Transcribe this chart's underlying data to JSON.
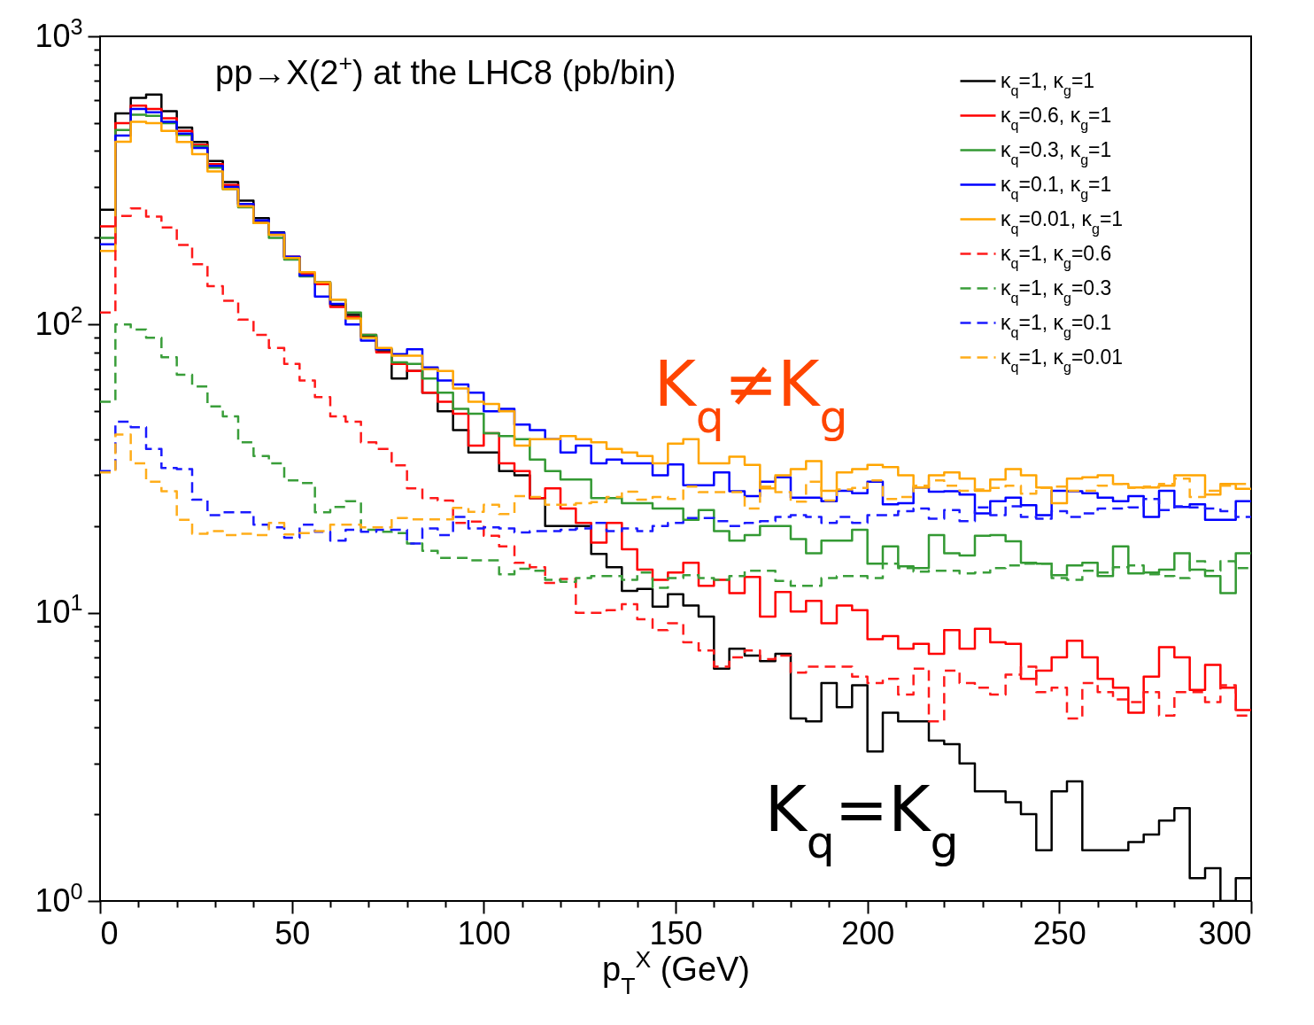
{
  "chart_data": {
    "type": "histogram",
    "title": "pp→X(2$^{+}$) at the LHC8 (pb/bin)",
    "xlabel": "p$_{T}$$^{X}$ (GeV)",
    "bins": [
      0,
      4,
      8,
      12,
      16,
      20,
      24,
      28,
      32,
      36,
      40,
      44,
      48,
      52,
      56,
      60,
      64,
      68,
      72,
      76,
      80,
      84,
      88,
      92,
      96,
      100,
      104,
      108,
      112,
      116,
      120,
      124,
      128,
      132,
      136,
      140,
      144,
      148,
      152,
      156,
      160,
      164,
      168,
      172,
      176,
      180,
      184,
      188,
      192,
      196,
      200,
      204,
      208,
      212,
      216,
      220,
      224,
      228,
      232,
      236,
      240,
      244,
      248,
      252,
      256,
      260,
      264,
      268,
      272,
      276,
      280,
      284,
      288,
      292,
      296,
      300
    ],
    "series": [
      {
        "name": "κ$_{q}$=1, κ$_{g}$=1",
        "color": "#000000",
        "line_style": "solid",
        "values": [
          250,
          540,
          612,
          628,
          550,
          482,
          430,
          369,
          312,
          269,
          234,
          209,
          171,
          149,
          140,
          117,
          108,
          91,
          81,
          65,
          69,
          58,
          50,
          43,
          36,
          36,
          31,
          30,
          25,
          20,
          20,
          20,
          16,
          14.4,
          11.9,
          12.1,
          10.5,
          11.6,
          10.6,
          9.7,
          6.4,
          7.5,
          7.1,
          6.8,
          7.2,
          4.3,
          4.2,
          5.7,
          4.7,
          5.6,
          3.3,
          4.5,
          4.2,
          4.2,
          3.6,
          3.5,
          3.0,
          2.4,
          2.4,
          2.2,
          2.0,
          1.5,
          2.4,
          2.6,
          1.5,
          1.5,
          1.5,
          1.6,
          1.7,
          1.9,
          2.1,
          1.2,
          1.3,
          null,
          1.2
        ]
      },
      {
        "name": "κ$_{q}$=0.6, κ$_{g}$=1",
        "color": "#ff0000",
        "line_style": "solid",
        "values": [
          219,
          500,
          575,
          560,
          520,
          470,
          420,
          360,
          305,
          262,
          228,
          205,
          172,
          150,
          138,
          115,
          106,
          92,
          80,
          73,
          69,
          58,
          54,
          49,
          38,
          42,
          33,
          31,
          25,
          27,
          23,
          20.5,
          17.5,
          20.5,
          16.6,
          14.1,
          13.0,
          13.8,
          14.9,
          12.4,
          13.0,
          11.7,
          13.3,
          9.7,
          11.8,
          10.1,
          11.0,
          9.2,
          10.6,
          10.2,
          8.1,
          8.3,
          7.5,
          7.8,
          7.2,
          8.7,
          7.5,
          8.8,
          7.9,
          7.8,
          5.9,
          6.3,
          7.0,
          8.0,
          7.0,
          5.9,
          5.5,
          4.5,
          6.0,
          7.6,
          7.0,
          5.4,
          6.6,
          5.5,
          4.6
        ]
      },
      {
        "name": "κ$_{q}$=0.3, κ$_{g}$=1",
        "color": "#339933",
        "line_style": "solid",
        "values": [
          200,
          473,
          535,
          530,
          500,
          455,
          415,
          350,
          295,
          255,
          225,
          200,
          168,
          147,
          140,
          122,
          110,
          92,
          82,
          74,
          73,
          65,
          58,
          51,
          49,
          42,
          41,
          40,
          34,
          31,
          29,
          29,
          25,
          25,
          24,
          24,
          23,
          23,
          21,
          22.7,
          19.2,
          17.8,
          18.6,
          20,
          20,
          18,
          16.1,
          17.8,
          17.8,
          19.4,
          14.8,
          17,
          14.5,
          14.3,
          18.6,
          16.1,
          15.8,
          18.5,
          18.6,
          17.7,
          14.9,
          14.8,
          13.5,
          14.6,
          14.9,
          13.4,
          17,
          13.7,
          13.8,
          14.1,
          16.1,
          14.1,
          13.4,
          11.7,
          16.1
        ]
      },
      {
        "name": "κ$_{q}$=0.1, κ$_{g}$=1",
        "color": "#0000ff",
        "line_style": "solid",
        "values": [
          190,
          453,
          560,
          545,
          505,
          460,
          410,
          355,
          300,
          262,
          230,
          208,
          172,
          148,
          125,
          118,
          100,
          88,
          82,
          79,
          82,
          71,
          64,
          62,
          58,
          50,
          51,
          45,
          43,
          40,
          36,
          38,
          33,
          34,
          33,
          33,
          30,
          32.7,
          27.7,
          27.7,
          30.7,
          26.4,
          25.4,
          28.5,
          29.5,
          25.1,
          25.1,
          24.4,
          26.5,
          26,
          28.5,
          23.8,
          24,
          27.2,
          26.3,
          26.4,
          25.7,
          22.1,
          24.4,
          25.1,
          23.6,
          21.8,
          26.5,
          26.4,
          26,
          25.1,
          24.4,
          25.4,
          21.5,
          26.5,
          23.3,
          23.8,
          21,
          21,
          24.4
        ]
      },
      {
        "name": "κ$_{q}$=0.01, κ$_{g}$=1",
        "color": "#ffa500",
        "line_style": "solid",
        "values": [
          180,
          431,
          505,
          500,
          470,
          430,
          390,
          340,
          295,
          257,
          225,
          205,
          170,
          152,
          140,
          122,
          105,
          90,
          83,
          78,
          78,
          70,
          69,
          60,
          54,
          53,
          50,
          38,
          40,
          40,
          41,
          40,
          39,
          37,
          36,
          35,
          33,
          38.6,
          40,
          33,
          33,
          34.8,
          32.6,
          27,
          30,
          31.5,
          33.6,
          26.5,
          30.7,
          31.5,
          32.6,
          32,
          30,
          27.2,
          30,
          30.7,
          29.2,
          26.5,
          29,
          31.5,
          30,
          27.2,
          24,
          29.2,
          29.5,
          30,
          28,
          27.2,
          27.2,
          27.6,
          30,
          30,
          25.7,
          28,
          26.9
        ]
      },
      {
        "name": "κ$_{q}$=1, κ$_{g}$=0.6",
        "color": "#ff1a1a",
        "line_style": "dashed",
        "values": [
          110,
          238,
          253,
          237,
          217,
          189,
          162,
          136,
          121,
          104,
          92,
          83,
          73,
          64,
          56,
          48,
          46,
          39,
          37,
          32.5,
          27,
          25,
          24.5,
          20.5,
          20.7,
          18.5,
          17,
          14.9,
          14.4,
          12.7,
          13.1,
          10,
          10,
          10.2,
          10.7,
          9.5,
          8.7,
          9.2,
          7.9,
          7.4,
          6.5,
          7.0,
          7.4,
          6.9,
          7.1,
          6.2,
          6.5,
          6.5,
          6.5,
          6.0,
          5.7,
          5.9,
          5.2,
          6.4,
          4.2,
          6.3,
          5.7,
          5.5,
          5.2,
          6.1,
          6.5,
          5.3,
          5.5,
          4.3,
          5.7,
          5.3,
          5.0,
          4.9,
          5.3,
          4.4,
          5.3,
          5.3,
          4.9,
          5.6,
          4.4
        ]
      },
      {
        "name": "κ$_{q}$=1, κ$_{g}$=0.3",
        "color": "#3a9e3a",
        "line_style": "dashed",
        "values": [
          54,
          100,
          96,
          90,
          77,
          67,
          61,
          52,
          48,
          39,
          35,
          33,
          28.8,
          28.2,
          22.3,
          23.3,
          24.4,
          19.4,
          19.1,
          18.9,
          17.4,
          16.4,
          15.5,
          15.5,
          15.2,
          15.2,
          13.6,
          14.2,
          14.0,
          13.0,
          12.8,
          13.2,
          13.4,
          13.4,
          13,
          13.8,
          12.2,
          13.2,
          13.5,
          13.2,
          13,
          13.4,
          14,
          14,
          12.9,
          12.4,
          12.4,
          13.2,
          13.4,
          13.4,
          13.2,
          14.8,
          14.3,
          13.9,
          14,
          14,
          13.7,
          13.8,
          14.3,
          14.6,
          14.8,
          14.8,
          13.2,
          13,
          14,
          13.8,
          14.4,
          14.6,
          13.6,
          13.4,
          13.2,
          15.1,
          14,
          15.1,
          14.3
        ]
      },
      {
        "name": "κ$_{q}$=1, κ$_{g}$=0.1",
        "color": "#1a1aff",
        "line_style": "dashed",
        "values": [
          31,
          46,
          44,
          37,
          31.8,
          31.5,
          24.7,
          21.8,
          22.3,
          22.3,
          20.2,
          19.8,
          18.2,
          20.2,
          19.1,
          17.8,
          19.4,
          19.1,
          19.4,
          19.4,
          17.4,
          19.6,
          18.6,
          21.5,
          19.6,
          19.8,
          19.6,
          19,
          19.2,
          19.2,
          19.4,
          19.6,
          20.5,
          19.2,
          19.6,
          19.2,
          20,
          20.5,
          21.3,
          21.3,
          20.8,
          20,
          20.5,
          20.8,
          21.5,
          21.8,
          21.5,
          20.5,
          21.5,
          20.5,
          21.8,
          21.8,
          22.5,
          23,
          21.2,
          22.7,
          20.8,
          23.2,
          21.8,
          23.4,
          21.5,
          21.2,
          22.5,
          21.5,
          22.1,
          23,
          23,
          23.2,
          24.8,
          22.7,
          23.4,
          23.2,
          23,
          22.5,
          21.5
        ]
      },
      {
        "name": "κ$_{q}$=1, κ$_{g}$=0.01",
        "color": "#ffad1a",
        "line_style": "dashed",
        "values": [
          30.7,
          41.5,
          33,
          28.5,
          26.4,
          21,
          18.8,
          19.2,
          18.6,
          18.8,
          18.6,
          20.5,
          18.7,
          18.9,
          19.2,
          20.2,
          20.2,
          19.8,
          19.8,
          21.3,
          21.1,
          21.1,
          21.1,
          23.1,
          22.4,
          23.7,
          22,
          25.4,
          25.2,
          23.7,
          23.7,
          24,
          24.2,
          25.2,
          26.3,
          24.7,
          25.2,
          24.8,
          27.4,
          26.2,
          26.2,
          26.2,
          23,
          27.4,
          26.2,
          24.3,
          28.5,
          24.5,
          26.8,
          27.1,
          28.8,
          24.8,
          25.2,
          27.6,
          28.8,
          27.6,
          26.5,
          26.8,
          27.1,
          27.6,
          25.9,
          27.1,
          27.4,
          26.5,
          26.5,
          27.6,
          28,
          27.1,
          27.4,
          28,
          29.2,
          25.2,
          26.5,
          27.6,
          28
        ]
      }
    ],
    "xlim": [
      0,
      300
    ],
    "xticks": [
      0,
      {
        "value": 10,
        "label": null
      },
      {
        "value": 20,
        "label": null
      },
      {
        "value": 30,
        "label": null
      },
      {
        "value": 40,
        "label": null
      },
      50,
      {
        "value": 60,
        "label": null
      },
      {
        "value": 70,
        "label": null
      },
      {
        "value": 80,
        "label": null
      },
      {
        "value": 90,
        "label": null
      },
      100,
      {
        "value": 110,
        "label": null
      },
      {
        "value": 120,
        "label": null
      },
      {
        "value": 130,
        "label": null
      },
      {
        "value": 140,
        "label": null
      },
      150,
      {
        "value": 160,
        "label": null
      },
      {
        "value": 170,
        "label": null
      },
      {
        "value": 180,
        "label": null
      },
      {
        "value": 190,
        "label": null
      },
      200,
      {
        "value": 210,
        "label": null
      },
      {
        "value": 220,
        "label": null
      },
      {
        "value": 230,
        "label": null
      },
      {
        "value": 240,
        "label": null
      },
      250,
      {
        "value": 260,
        "label": null
      },
      {
        "value": 270,
        "label": null
      },
      {
        "value": 280,
        "label": null
      },
      {
        "value": 290,
        "label": null
      },
      300
    ],
    "ylim": [
      1,
      1000
    ],
    "yticks": [
      {
        "value": 1,
        "label": "10$^{0}$"
      },
      {
        "value": 2,
        "label": null
      },
      {
        "value": 3,
        "label": null
      },
      {
        "value": 4,
        "label": null
      },
      {
        "value": 5,
        "label": null
      },
      {
        "value": 6,
        "label": null
      },
      {
        "value": 7,
        "label": null
      },
      {
        "value": 8,
        "label": null
      },
      {
        "value": 9,
        "label": null
      },
      {
        "value": 10,
        "label": "10$^{1}$"
      },
      {
        "value": 20,
        "label": null
      },
      {
        "value": 30,
        "label": null
      },
      {
        "value": 40,
        "label": null
      },
      {
        "value": 50,
        "label": null
      },
      {
        "value": 60,
        "label": null
      },
      {
        "value": 70,
        "label": null
      },
      {
        "value": 80,
        "label": null
      },
      {
        "value": 90,
        "label": null
      },
      {
        "value": 100,
        "label": "10$^{2}$"
      },
      {
        "value": 200,
        "label": null
      },
      {
        "value": 300,
        "label": null
      },
      {
        "value": 400,
        "label": null
      },
      {
        "value": 500,
        "label": null
      },
      {
        "value": 600,
        "label": null
      },
      {
        "value": 700,
        "label": null
      },
      {
        "value": 800,
        "label": null
      },
      {
        "value": 900,
        "label": null
      },
      {
        "value": 1000,
        "label": "10$^{3}$"
      }
    ],
    "log": true,
    "grid": false,
    "legend": "top right",
    "annotations": [
      "K$_{q}$≠K$_{g}$",
      "K$_{q}$=K$_{g}$"
    ]
  }
}
